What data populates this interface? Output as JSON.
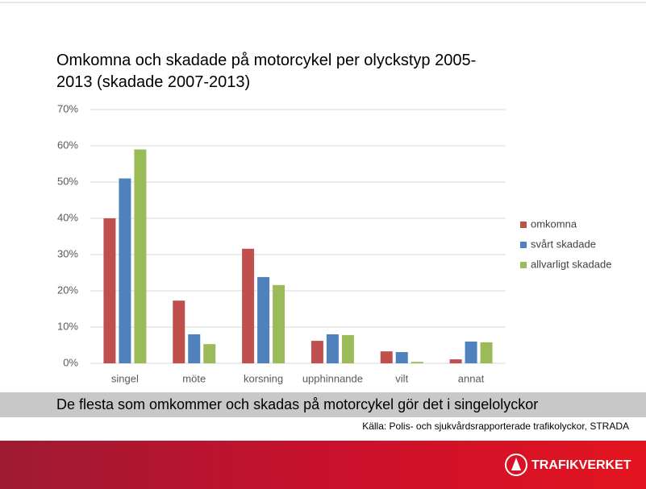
{
  "chart_data": {
    "type": "bar",
    "title": "Omkomna och skadade på motorcykel per olyckstyp 2005-2013 (skadade 2007-2013)",
    "categories": [
      "singel",
      "möte",
      "korsning",
      "upphinnande",
      "vilt",
      "annat"
    ],
    "series": [
      {
        "name": "omkomna",
        "color": "#c0504d",
        "values": [
          40,
          17.3,
          31.6,
          6.2,
          3.3,
          1.1
        ]
      },
      {
        "name": "svårt skadade",
        "color": "#4f81bd",
        "values": [
          51,
          8,
          23.8,
          8,
          3.1,
          6
        ]
      },
      {
        "name": "allvarligt skadade",
        "color": "#9bbb59",
        "values": [
          59,
          5.3,
          21.6,
          7.8,
          0.4,
          5.8
        ]
      }
    ],
    "ylim": [
      0,
      70
    ],
    "yticks": [
      {
        "value": 0,
        "label": "0%"
      },
      {
        "value": 10,
        "label": "10%"
      },
      {
        "value": 20,
        "label": "20%"
      },
      {
        "value": 30,
        "label": "30%"
      },
      {
        "value": 40,
        "label": "40%"
      },
      {
        "value": 50,
        "label": "50%"
      },
      {
        "value": 60,
        "label": "60%"
      },
      {
        "value": 70,
        "label": "70%"
      }
    ],
    "grid": true,
    "legend": "right"
  },
  "banner": "De flesta som omkommer och skadas på motorcykel gör det i singelolyckor",
  "source": "Källa: Polis- och sjukvårdsrapporterade trafikolyckor, STRADA",
  "logo": "TRAFIKVERKET"
}
